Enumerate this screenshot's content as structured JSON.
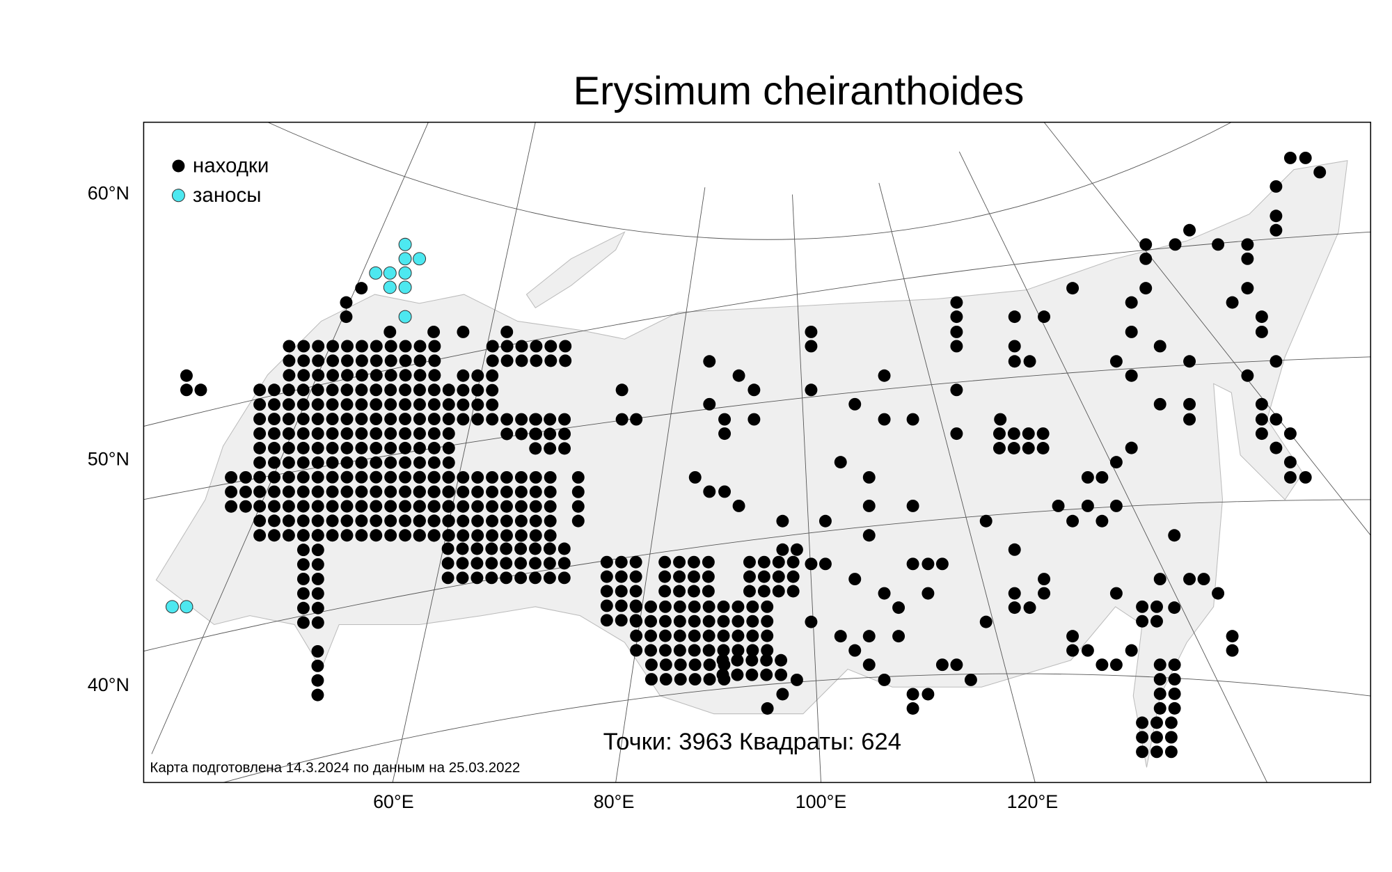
{
  "title": "Erysimum cheiranthoides",
  "legend": [
    "находки",
    "заносы"
  ],
  "lat_labels": [
    "60°N",
    "50°N",
    "40°N"
  ],
  "lon_labels": [
    "60°E",
    "80°E",
    "100°E",
    "120°E"
  ],
  "stats": "Точки: 3963 Квадраты: 624",
  "footnote": "Карта подготовлена 14.3.2024 по данным на 25.03.2022"
}
